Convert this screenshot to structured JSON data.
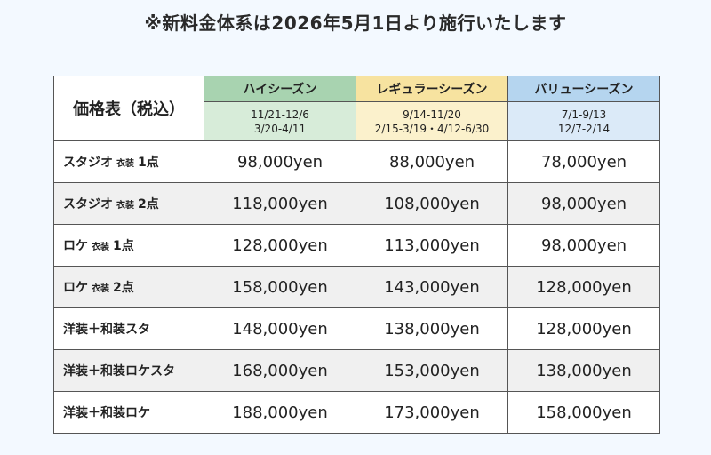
{
  "notice": "※新料金体系は2026年5月1日より施行いたします",
  "table": {
    "corner": "価格表（税込）",
    "seasons": [
      {
        "name": "ハイシーズン",
        "dates1": "11/21-12/6",
        "dates2": "3/20-4/11",
        "head_color": "#a8d3b0",
        "date_color": "#d7ecd9"
      },
      {
        "name": "レギュラーシーズン",
        "dates1": "9/14-11/20",
        "dates2": "2/15-3/19・4/12-6/30",
        "head_color": "#f7e3a0",
        "date_color": "#fbf1cc"
      },
      {
        "name": "バリューシーズン",
        "dates1": "7/1-9/13",
        "dates2": "12/7-2/14",
        "head_color": "#b5d5ef",
        "date_color": "#dbeaf8"
      }
    ],
    "rows": [
      {
        "label": "スタジオ",
        "sub": "衣装",
        "count": "1点",
        "prices": [
          "98,000yen",
          "88,000yen",
          "78,000yen"
        ]
      },
      {
        "label": "スタジオ",
        "sub": "衣装",
        "count": "2点",
        "prices": [
          "118,000yen",
          "108,000yen",
          "98,000yen"
        ]
      },
      {
        "label": "ロケ",
        "sub": "衣装",
        "count": "1点",
        "prices": [
          "128,000yen",
          "113,000yen",
          "98,000yen"
        ]
      },
      {
        "label": "ロケ",
        "sub": "衣装",
        "count": "2点",
        "prices": [
          "158,000yen",
          "143,000yen",
          "128,000yen"
        ]
      },
      {
        "label": "洋装＋和装スタ",
        "sub": "",
        "count": "",
        "prices": [
          "148,000yen",
          "138,000yen",
          "128,000yen"
        ]
      },
      {
        "label": "洋装＋和装ロケスタ",
        "sub": "",
        "count": "",
        "prices": [
          "168,000yen",
          "153,000yen",
          "138,000yen"
        ]
      },
      {
        "label": "洋装＋和装ロケ",
        "sub": "",
        "count": "",
        "prices": [
          "188,000yen",
          "173,000yen",
          "158,000yen"
        ]
      }
    ]
  }
}
